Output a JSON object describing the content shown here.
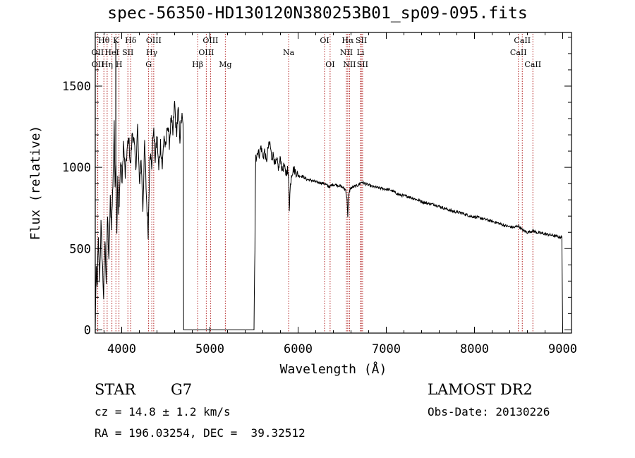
{
  "title": "spec-56350-HD130120N380253B01_sp09-095.fits",
  "footer": {
    "class_label": "STAR",
    "subclass": "G7",
    "survey": "LAMOST DR2",
    "cz": "cz = 14.8 ± 1.2 km/s",
    "obs_date": "Obs-Date: 20130226",
    "coords": "RA = 196.03254, DEC =  39.32512"
  },
  "chart_data": {
    "type": "line",
    "title": "spec-56350-HD130120N380253B01_sp09-095.fits",
    "xlabel": "Wavelength (Å)",
    "ylabel": "Flux (relative)",
    "xlim": [
      3700,
      9100
    ],
    "ylim": [
      -20,
      1830
    ],
    "x_ticks": [
      4000,
      5000,
      6000,
      7000,
      8000,
      9000
    ],
    "x_tick_labels": [
      "4000",
      "5000",
      "6000",
      "7000",
      "8000",
      "9000"
    ],
    "y_ticks": [
      0,
      500,
      1000,
      1500
    ],
    "y_tick_labels": [
      "0",
      "500",
      "1000",
      "1500"
    ],
    "grid": false,
    "line_color": "#000000",
    "marker_color": "#b22222",
    "spectrum": {
      "x": [
        3700,
        3710,
        3720,
        3735,
        3750,
        3765,
        3780,
        3795,
        3810,
        3825,
        3840,
        3855,
        3870,
        3885,
        3900,
        3915,
        3925,
        3935,
        3945,
        3955,
        3965,
        3975,
        3990,
        4005,
        4020,
        4040,
        4060,
        4080,
        4100,
        4120,
        4140,
        4160,
        4180,
        4200,
        4220,
        4240,
        4260,
        4280,
        4300,
        4320,
        4340,
        4360,
        4380,
        4400,
        4420,
        4440,
        4460,
        4480,
        4500,
        4520,
        4540,
        4560,
        4580,
        4600,
        4620,
        4640,
        4660,
        4680,
        4695,
        4698,
        4700,
        4702,
        4705,
        5500,
        5510,
        5515,
        5520,
        5525,
        5540,
        5560,
        5580,
        5600,
        5620,
        5640,
        5660,
        5680,
        5700,
        5720,
        5740,
        5760,
        5780,
        5800,
        5820,
        5840,
        5860,
        5880,
        5895,
        5900,
        5910,
        5925,
        5950,
        6000,
        6050,
        6100,
        6150,
        6200,
        6250,
        6300,
        6350,
        6400,
        6450,
        6500,
        6540,
        6555,
        6563,
        6572,
        6590,
        6630,
        6680,
        6720,
        6780,
        6850,
        6950,
        7050,
        7150,
        7250,
        7350,
        7450,
        7550,
        7650,
        7750,
        7850,
        7950,
        8050,
        8150,
        8250,
        8350,
        8450,
        8498,
        8542,
        8600,
        8662,
        8700,
        8800,
        8900,
        8970,
        8990,
        9000
      ],
      "y": [
        0,
        380,
        250,
        540,
        320,
        650,
        420,
        200,
        550,
        300,
        700,
        400,
        800,
        650,
        900,
        1250,
        900,
        1050,
        600,
        950,
        700,
        850,
        1050,
        900,
        1150,
        950,
        1100,
        1180,
        1000,
        1220,
        1150,
        1000,
        1250,
        900,
        1050,
        750,
        1150,
        820,
        600,
        1100,
        1000,
        1250,
        1050,
        1200,
        980,
        1150,
        1000,
        1200,
        1100,
        1280,
        1150,
        1300,
        1200,
        1400,
        1200,
        1350,
        1180,
        1320,
        1250,
        1150,
        400,
        0,
        0,
        0,
        500,
        900,
        1100,
        1050,
        1100,
        1080,
        1130,
        1060,
        1100,
        1030,
        1120,
        1150,
        1060,
        1080,
        1010,
        1040,
        990,
        1060,
        980,
        1010,
        960,
        990,
        900,
        750,
        870,
        960,
        990,
        950,
        945,
        925,
        920,
        910,
        905,
        900,
        880,
        895,
        890,
        880,
        860,
        800,
        700,
        820,
        870,
        880,
        890,
        910,
        895,
        880,
        870,
        860,
        830,
        820,
        800,
        780,
        770,
        750,
        730,
        720,
        700,
        690,
        675,
        660,
        640,
        630,
        640,
        615,
        600,
        610,
        600,
        590,
        580,
        570,
        570,
        10
      ]
    },
    "spike": {
      "x": 3933,
      "y": 1780
    },
    "markers": [
      {
        "label": "Hθ",
        "wavelength": 3798,
        "row": 1
      },
      {
        "label": "OII",
        "wavelength": 3727,
        "row": 2
      },
      {
        "label": "OII",
        "wavelength": 3729,
        "row": 3
      },
      {
        "label": "HeI",
        "wavelength": 3889,
        "row": 2
      },
      {
        "label": "Hη",
        "wavelength": 3835,
        "row": 3
      },
      {
        "label": "K",
        "wavelength": 3934,
        "row": 1
      },
      {
        "label": "H",
        "wavelength": 3969,
        "row": 3
      },
      {
        "label": "SII",
        "wavelength": 4070,
        "row": 2
      },
      {
        "label": "Hδ",
        "wavelength": 4102,
        "row": 1
      },
      {
        "label": "OIII",
        "wavelength": 4363,
        "row": 1
      },
      {
        "label": "Hγ",
        "wavelength": 4341,
        "row": 2
      },
      {
        "label": "G",
        "wavelength": 4305,
        "row": 3
      },
      {
        "label": "OIII",
        "wavelength": 5007,
        "row": 1
      },
      {
        "label": "OIII",
        "wavelength": 4959,
        "row": 2
      },
      {
        "label": "Hβ",
        "wavelength": 4861,
        "row": 3
      },
      {
        "label": "Mg",
        "wavelength": 5175,
        "row": 3
      },
      {
        "label": "Na",
        "wavelength": 5893,
        "row": 2
      },
      {
        "label": "OI",
        "wavelength": 6300,
        "row": 1
      },
      {
        "label": "OI",
        "wavelength": 6363,
        "row": 3
      },
      {
        "label": "Hα",
        "wavelength": 6563,
        "row": 1
      },
      {
        "label": "NII",
        "wavelength": 6548,
        "row": 2
      },
      {
        "label": "NII",
        "wavelength": 6583,
        "row": 3
      },
      {
        "label": "SII",
        "wavelength": 6717,
        "row": 1
      },
      {
        "label": "Li",
        "wavelength": 6708,
        "row": 2
      },
      {
        "label": "SII",
        "wavelength": 6731,
        "row": 3
      },
      {
        "label": "CaII",
        "wavelength": 8542,
        "row": 1
      },
      {
        "label": "CaII",
        "wavelength": 8498,
        "row": 2
      },
      {
        "label": "CaII",
        "wavelength": 8662,
        "row": 3
      }
    ]
  }
}
